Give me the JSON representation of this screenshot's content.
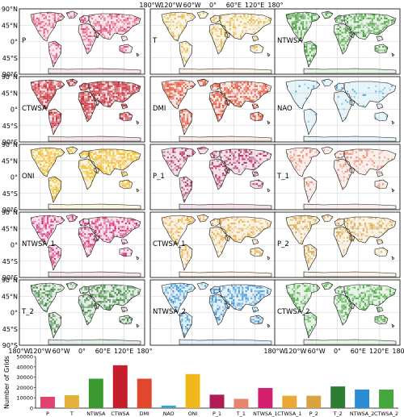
{
  "maps": {
    "lat_labels": [
      "90°N",
      "45°N",
      "0°",
      "45°S",
      "90°S"
    ],
    "lon_labels": [
      "180°W",
      "120°W",
      "60°W",
      "0°",
      "60°E",
      "120°E",
      "180°"
    ],
    "panels": [
      {
        "label": "P",
        "color": "#e0436e"
      },
      {
        "label": "T",
        "color": "#e3b23c"
      },
      {
        "label": "NTWSA",
        "color": "#3a9a2f"
      },
      {
        "label": "CTWSA",
        "color": "#c41e2a"
      },
      {
        "label": "DMI",
        "color": "#e0482d"
      },
      {
        "label": "NAO",
        "color": "#38a6cc"
      },
      {
        "label": "ONI",
        "color": "#f1b81c"
      },
      {
        "label": "P_1",
        "color": "#b01c55"
      },
      {
        "label": "T_1",
        "color": "#e9856c"
      },
      {
        "label": "NTWSA_1",
        "color": "#d4206e"
      },
      {
        "label": "CTWSA_1",
        "color": "#eaa838"
      },
      {
        "label": "P_2",
        "color": "#d9a440"
      },
      {
        "label": "T_2",
        "color": "#2e7d32"
      },
      {
        "label": "NTWSA_2",
        "color": "#2a8cd0"
      },
      {
        "label": "CTWSA_2",
        "color": "#45a83c"
      }
    ]
  },
  "chart_data": {
    "type": "bar",
    "ylabel": "Number of Grids",
    "ylim": [
      0,
      50000
    ],
    "yticks": [
      0,
      10000,
      20000,
      30000,
      40000,
      50000
    ],
    "categories": [
      "P",
      "T",
      "NTWSA",
      "CTWSA",
      "DMI",
      "NAO",
      "ONI",
      "P_1",
      "T_1",
      "NTWSA_1",
      "CTWSA_1",
      "P_2",
      "T_2",
      "NTWSA_2",
      "CTWSA_2"
    ],
    "values": [
      11000,
      12500,
      28500,
      41500,
      28500,
      2500,
      33000,
      13000,
      9000,
      19500,
      12000,
      12000,
      21000,
      18000,
      18000
    ],
    "colors": [
      "#e0436e",
      "#e3b23c",
      "#3a9a2f",
      "#c41e2a",
      "#e0482d",
      "#38a6cc",
      "#f1b81c",
      "#b01c55",
      "#e9856c",
      "#d4206e",
      "#eaa838",
      "#d9a440",
      "#2e7d32",
      "#2a8cd0",
      "#45a83c"
    ]
  }
}
